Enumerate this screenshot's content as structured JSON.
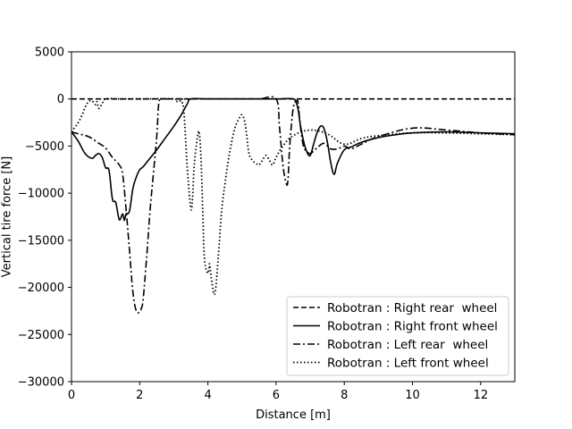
{
  "chart_data": {
    "type": "line",
    "title": "",
    "xlabel": "Distance [m]",
    "ylabel": "Vertical tire force [N]",
    "xlim": [
      0,
      13
    ],
    "ylim": [
      -30000,
      5000
    ],
    "xticks": [
      0,
      2,
      4,
      6,
      8,
      10,
      12
    ],
    "yticks": [
      5000,
      0,
      -5000,
      -10000,
      -15000,
      -20000,
      -25000,
      -30000
    ],
    "grid": false,
    "legend_position": "lower-right",
    "series": [
      {
        "name": "Robotran : Right rear  wheel",
        "dash": "dashed",
        "color": "#000000",
        "x": [
          0,
          1,
          2,
          4,
          6,
          8,
          10,
          12,
          13
        ],
        "y": [
          0,
          0,
          0,
          0,
          0,
          0,
          0,
          0,
          0
        ]
      },
      {
        "name": "Robotran : Right front wheel",
        "dash": "solid",
        "color": "#000000",
        "x": [
          0,
          0.2,
          0.4,
          0.6,
          0.7,
          0.8,
          0.9,
          1.0,
          1.1,
          1.2,
          1.3,
          1.4,
          1.5,
          1.55,
          1.6,
          1.7,
          1.8,
          1.9,
          2.0,
          2.1,
          2.3,
          2.5,
          2.7,
          3.0,
          3.2,
          3.4,
          3.5,
          4.0,
          5.0,
          6.0,
          6.5,
          6.6,
          6.65,
          6.7,
          6.8,
          6.9,
          7.0,
          7.1,
          7.2,
          7.3,
          7.4,
          7.5,
          7.6,
          7.7,
          7.8,
          8.0,
          8.2,
          8.5,
          9.0,
          9.5,
          10.0,
          11.0,
          12.0,
          13.0
        ],
        "y": [
          -3500,
          -4500,
          -5800,
          -6300,
          -6000,
          -5800,
          -6200,
          -7300,
          -7600,
          -10600,
          -11000,
          -12800,
          -12200,
          -12900,
          -12200,
          -11900,
          -9500,
          -8300,
          -7500,
          -7200,
          -6300,
          -5400,
          -4400,
          -2900,
          -1800,
          -500,
          0,
          0,
          0,
          0,
          0,
          -500,
          -1200,
          -2500,
          -4400,
          -5600,
          -6000,
          -4800,
          -3600,
          -2900,
          -3100,
          -4500,
          -6700,
          -8000,
          -6800,
          -5400,
          -5100,
          -4600,
          -4100,
          -3800,
          -3600,
          -3500,
          -3600,
          -3700
        ]
      },
      {
        "name": "Robotran : Left rear  wheel",
        "dash": "dashdot",
        "color": "#000000",
        "x": [
          0,
          0.2,
          0.5,
          0.8,
          1.0,
          1.2,
          1.4,
          1.5,
          1.6,
          1.7,
          1.8,
          1.9,
          2.0,
          2.05,
          2.1,
          2.2,
          2.3,
          2.4,
          2.5,
          2.55,
          2.6,
          2.7,
          3.0,
          4.0,
          5.0,
          5.5,
          6.0,
          6.1,
          6.2,
          6.3,
          6.35,
          6.4,
          6.5,
          6.6,
          6.65,
          6.7,
          6.8,
          6.9,
          7.0,
          7.2,
          7.4,
          7.6,
          7.8,
          8.0,
          8.2,
          8.5,
          9.0,
          10.0,
          11.0,
          12.0,
          13.0
        ],
        "y": [
          -3500,
          -3700,
          -4000,
          -4700,
          -5200,
          -6200,
          -7000,
          -8000,
          -11700,
          -16000,
          -20500,
          -22500,
          -22600,
          -22200,
          -21300,
          -17000,
          -12000,
          -8000,
          -4000,
          -800,
          0,
          0,
          0,
          0,
          0,
          0,
          0,
          -3000,
          -7000,
          -9000,
          -8500,
          -5000,
          -1000,
          -200,
          -500,
          -2500,
          -5000,
          -5500,
          -5800,
          -5200,
          -4700,
          -5300,
          -5300,
          -5000,
          -5300,
          -4800,
          -4000,
          -3100,
          -3300,
          -3600,
          -3800
        ]
      },
      {
        "name": "Robotran : Left front wheel",
        "dash": "dotted",
        "color": "#000000",
        "x": [
          0,
          0.1,
          0.2,
          0.3,
          0.4,
          0.5,
          0.6,
          0.7,
          0.75,
          0.8,
          0.9,
          1.0,
          1.5,
          2.0,
          3.0,
          3.1,
          3.2,
          3.25,
          3.3,
          3.4,
          3.5,
          3.55,
          3.6,
          3.7,
          3.75,
          3.8,
          3.85,
          3.9,
          4.0,
          4.05,
          4.1,
          4.2,
          4.3,
          4.4,
          4.5,
          4.6,
          4.7,
          4.8,
          4.9,
          5.0,
          5.1,
          5.2,
          5.3,
          5.4,
          5.5,
          5.6,
          5.7,
          5.8,
          5.9,
          6.0,
          6.2,
          6.5,
          7.0,
          7.5,
          8.0,
          8.5,
          9.0,
          10.0,
          11.0,
          12.0,
          13.0
        ],
        "y": [
          -3500,
          -3000,
          -2500,
          -1800,
          -900,
          -300,
          -200,
          -600,
          -300,
          -1000,
          -500,
          0,
          0,
          0,
          0,
          -300,
          -200,
          -400,
          -1500,
          -7500,
          -11600,
          -10500,
          -7000,
          -3900,
          -3700,
          -6500,
          -12000,
          -17000,
          -18500,
          -17500,
          -19000,
          -20700,
          -17000,
          -12000,
          -9000,
          -6500,
          -4500,
          -3000,
          -2200,
          -1700,
          -2800,
          -5700,
          -6500,
          -6800,
          -7000,
          -6500,
          -6000,
          -6500,
          -7000,
          -6200,
          -5000,
          -3900,
          -3300,
          -3700,
          -4800,
          -4200,
          -3900,
          -3600,
          -3600,
          -3700,
          -3800
        ]
      }
    ]
  }
}
